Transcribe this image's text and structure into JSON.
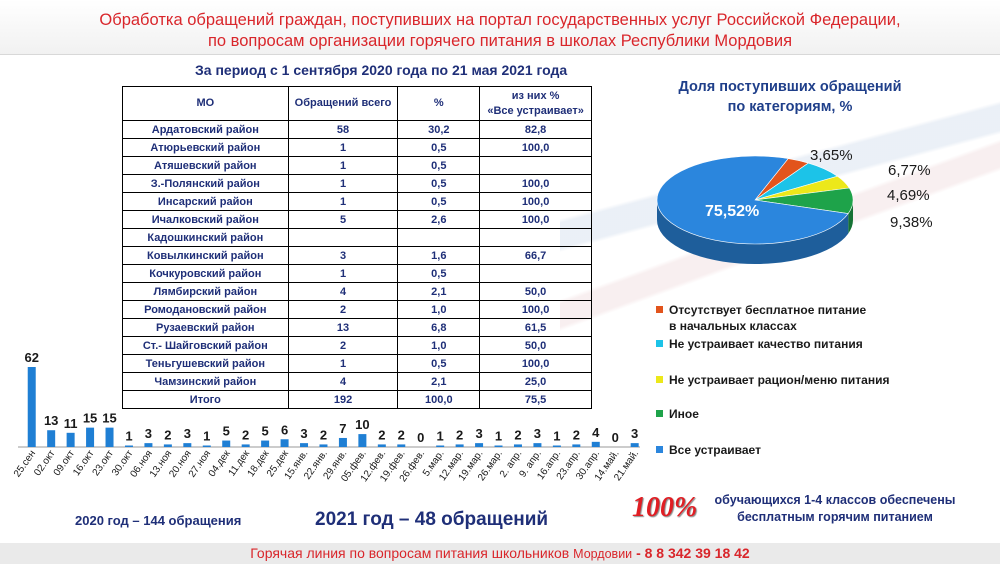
{
  "header": {
    "title": "Обработка обращений граждан, поступивших на портал государственных услуг Российской Федерации,\nпо вопросам организации горячего питания в школах Республики Мордовия"
  },
  "period": "За период с 1 сентября 2020 года по 21 мая 2021 года",
  "table": {
    "headers": [
      "МО",
      "Обращений всего",
      "%",
      "из них %\n«Все устраивает»"
    ],
    "rows": [
      [
        "Ардатовский район",
        "58",
        "30,2",
        "82,8"
      ],
      [
        "Атюрьевский район",
        "1",
        "0,5",
        "100,0"
      ],
      [
        "Атяшевский район",
        "1",
        "0,5",
        ""
      ],
      [
        "З.-Полянский район",
        "1",
        "0,5",
        "100,0"
      ],
      [
        "Инсарский район",
        "1",
        "0,5",
        "100,0"
      ],
      [
        "Ичалковский район",
        "5",
        "2,6",
        "100,0"
      ],
      [
        "Кадошкинский район",
        "",
        "",
        ""
      ],
      [
        "Ковылкинский район",
        "3",
        "1,6",
        "66,7"
      ],
      [
        "Кочкуровский район",
        "1",
        "0,5",
        ""
      ],
      [
        "Лямбирский район",
        "4",
        "2,1",
        "50,0"
      ],
      [
        "Ромодановский район",
        "2",
        "1,0",
        "100,0"
      ],
      [
        "Рузаевский район",
        "13",
        "6,8",
        "61,5"
      ],
      [
        "Ст.- Шайговский район",
        "2",
        "1,0",
        "50,0"
      ],
      [
        "Теньгушевский район",
        "1",
        "0,5",
        "100,0"
      ],
      [
        "Чамзинский район",
        "4",
        "2,1",
        "25,0"
      ],
      [
        "Итого",
        "192",
        "100,0",
        "75,5"
      ]
    ]
  },
  "pie": {
    "title": "Доля поступивших обращений\nпо категориям, %",
    "legend": [
      "Отсутствует бесплатное питание\nв начальных классах",
      "Не устраивает качество питания",
      "Не устраивает рацион/меню питания",
      "Иное",
      "Все устраивает"
    ]
  },
  "colors": {
    "title_red": "#d9262b",
    "navy": "#1f2f78",
    "bar_blue": "#1f7fd4",
    "pie_orange": "#e2541c",
    "pie_cyan": "#1cc3e8",
    "pie_yellow": "#ece81a",
    "pie_green": "#1ea34a",
    "pie_blue": "#2b86dd"
  },
  "chart_data": [
    {
      "type": "pie",
      "title": "Доля поступивших обращений по категориям, %",
      "slices": [
        {
          "name": "Отсутствует бесплатное питание в начальных классах",
          "value": 3.65,
          "label": "3,65%",
          "color": "#e2541c"
        },
        {
          "name": "Не устраивает качество питания",
          "value": 6.77,
          "label": "6,77%",
          "color": "#1cc3e8"
        },
        {
          "name": "Не устраивает рацион/меню питания",
          "value": 4.69,
          "label": "4,69%",
          "color": "#ece81a"
        },
        {
          "name": "Иное",
          "value": 9.38,
          "label": "9,38%",
          "color": "#1ea34a"
        },
        {
          "name": "Все устраивает",
          "value": 75.52,
          "label": "75,52%",
          "color": "#2b86dd"
        }
      ],
      "legend_position": "below"
    },
    {
      "type": "bar",
      "categories": [
        "25.сен",
        "02.окт",
        "09.окт",
        "16.окт",
        "23.окт",
        "30.окт",
        "06.ноя",
        "13.ноя",
        "20.ноя",
        "27.ноя",
        "04.дек",
        "11.дек",
        "18.дек",
        "25.дек",
        "15.янв.",
        "22.янв.",
        "29.янв.",
        "05.фев.",
        "12.фев.",
        "19.фев.",
        "26.фев.",
        "5.мар.",
        "12.мар.",
        "19.мар.",
        "26.мар.",
        "2. апр.",
        "9. апр.",
        "16.апр.",
        "23.апр.",
        "30.апр.",
        "14.май.",
        "21.май."
      ],
      "values": [
        62,
        13,
        11,
        15,
        15,
        1,
        3,
        2,
        3,
        1,
        5,
        2,
        5,
        6,
        3,
        2,
        7,
        10,
        2,
        2,
        0,
        1,
        2,
        3,
        1,
        2,
        3,
        1,
        2,
        4,
        0,
        3
      ],
      "ylim": [
        0,
        62
      ],
      "grid": false
    }
  ],
  "summary": {
    "year2020": "2020 год – 144 обращения",
    "year2021": "2021 год – 48 обращений",
    "pct": "100%",
    "pct_note": "обучающихся 1-4 классов обеспечены\nбесплатным горячим питанием"
  },
  "hotline": {
    "text": "Горячая линия по вопросам питания школьников",
    "region": "Мордовии",
    "phone": "- 8 8 342 39 18 42"
  }
}
